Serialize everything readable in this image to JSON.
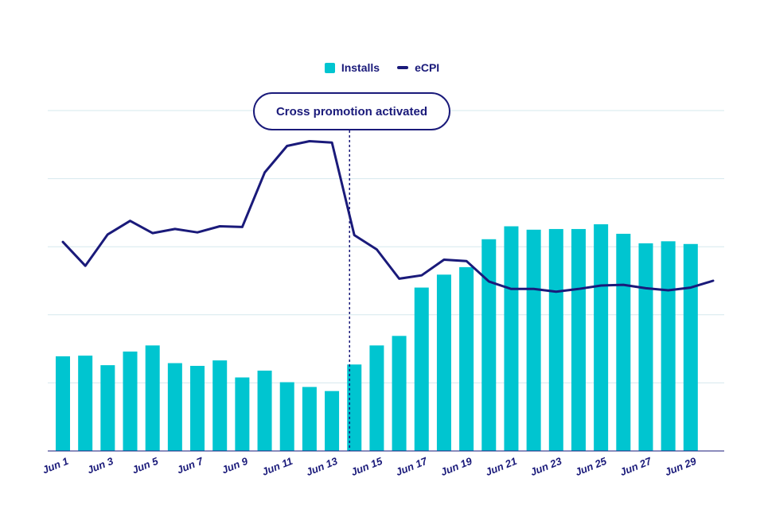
{
  "chart_data": {
    "type": "bar",
    "title": "",
    "xlabel": "",
    "ylabel": "",
    "ylim": [
      0,
      500
    ],
    "grid": true,
    "legend_placement": "top-center",
    "x": [
      "Jun 1",
      "Jun 2",
      "Jun 3",
      "Jun 4",
      "Jun 5",
      "Jun 6",
      "Jun 7",
      "Jun 8",
      "Jun 9",
      "Jun 10",
      "Jun 11",
      "Jun 12",
      "Jun 13",
      "Jun 14",
      "Jun 15",
      "Jun 16",
      "Jun 17",
      "Jun 18",
      "Jun 19",
      "Jun 20",
      "Jun 21",
      "Jun 22",
      "Jun 23",
      "Jun 24",
      "Jun 25",
      "Jun 26",
      "Jun 27",
      "Jun 28",
      "Jun 29",
      "Jun 30"
    ],
    "tick_labels": [
      "Jun 1",
      "Jun 3",
      "Jun 5",
      "Jun 7",
      "Jun 9",
      "Jun 11",
      "Jun 13",
      "Jun 15",
      "Jun 17",
      "Jun 19",
      "Jun 21",
      "Jun 23",
      "Jun 25",
      "Jun 27",
      "Jun 29"
    ],
    "series": [
      {
        "name": "Installs",
        "type": "bar",
        "color": "#00c5d0",
        "values": [
          139,
          140,
          126,
          146,
          155,
          129,
          125,
          133,
          108,
          118,
          101,
          94,
          88,
          127,
          155,
          169,
          240,
          259,
          270,
          311,
          330,
          325,
          326,
          326,
          333,
          319,
          305,
          308,
          304,
          0
        ]
      },
      {
        "name": "eCPI",
        "type": "line",
        "color": "#1a1a7a",
        "values": [
          307,
          272,
          318,
          338,
          320,
          326,
          321,
          330,
          329,
          409,
          448,
          455,
          453,
          317,
          296,
          253,
          258,
          281,
          279,
          249,
          238,
          238,
          234,
          238,
          243,
          244,
          239,
          236,
          240,
          250
        ]
      }
    ],
    "annotations": [
      {
        "text": "Cross promotion activated",
        "at": "Jun 14"
      }
    ]
  }
}
